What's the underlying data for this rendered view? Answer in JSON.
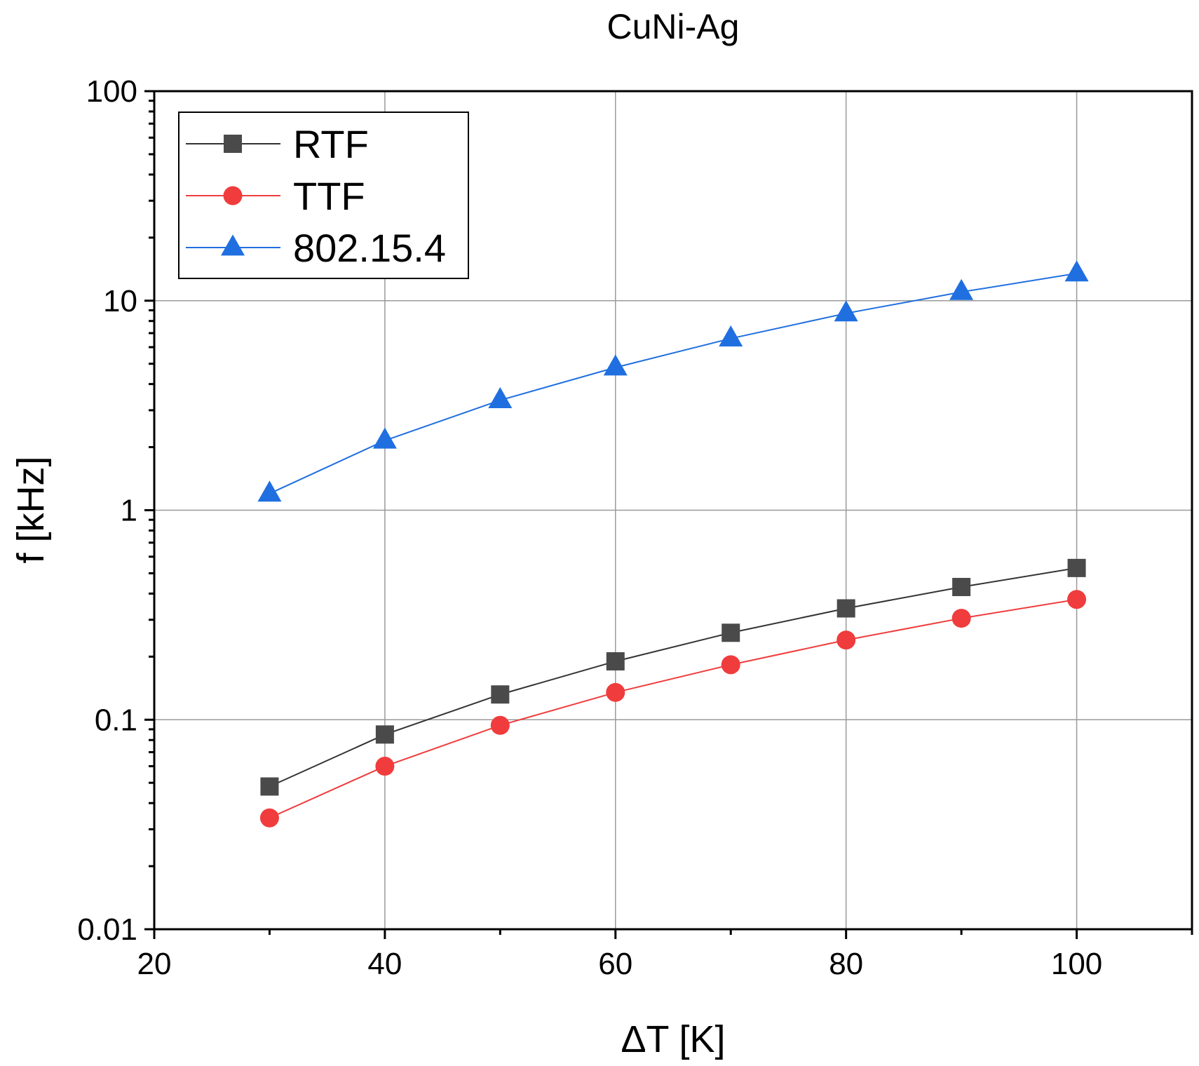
{
  "chart_data": {
    "type": "line",
    "title": "CuNi-Ag",
    "xlabel": "ΔT [K]",
    "ylabel": "f [kHz]",
    "xlim": [
      20,
      110
    ],
    "ylim": [
      0.01,
      100
    ],
    "yscale": "log",
    "grid": true,
    "legend_position": "top-left",
    "x": [
      30,
      40,
      50,
      60,
      70,
      80,
      90,
      100
    ],
    "x_ticks": [
      20,
      40,
      60,
      80,
      100
    ],
    "x_tick_labels": [
      "20",
      "40",
      "60",
      "80",
      "100"
    ],
    "x_minor_ticks": [
      30,
      50,
      70,
      90,
      110
    ],
    "y_ticks": [
      0.01,
      0.1,
      1,
      10,
      100
    ],
    "y_tick_labels": [
      "0.01",
      "0.1",
      "1",
      "10",
      "100"
    ],
    "series": [
      {
        "name": "RTF",
        "marker": "square",
        "color": "#4a4a4a",
        "line_color": "#333333",
        "values": [
          0.048,
          0.085,
          0.132,
          0.19,
          0.26,
          0.34,
          0.43,
          0.53
        ]
      },
      {
        "name": "TTF",
        "marker": "circle",
        "color": "#f03c3c",
        "line_color": "#f03c3c",
        "values": [
          0.034,
          0.06,
          0.094,
          0.135,
          0.183,
          0.24,
          0.305,
          0.375
        ]
      },
      {
        "name": "802.15.4",
        "marker": "triangle",
        "color": "#1f6fe0",
        "line_color": "#1f6fe0",
        "values": [
          1.2,
          2.15,
          3.35,
          4.8,
          6.6,
          8.7,
          11.0,
          13.5
        ]
      }
    ]
  }
}
